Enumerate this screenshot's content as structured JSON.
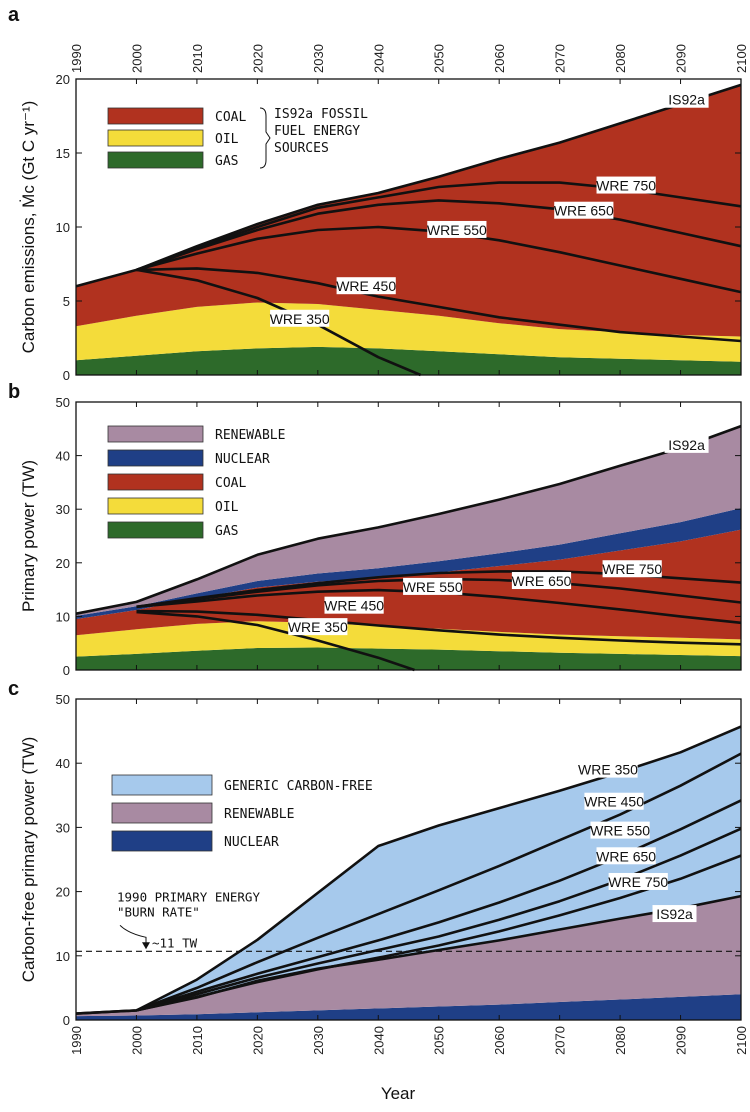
{
  "figure": {
    "xlabel": "Year"
  },
  "colors": {
    "coal": "#b1321f",
    "oil": "#f4dc3a",
    "gas": "#2d6a2a",
    "renewable": "#a88aa2",
    "nuclear": "#1f3f86",
    "carbon_free": "#a6c9ec",
    "axis": "#111111"
  },
  "chart_data": [
    {
      "id": "a",
      "type": "area",
      "panel_label": "a",
      "ylabel": "Carbon emissions, Ṁc (Gt C yr⁻¹)",
      "xlim": [
        1990,
        2100
      ],
      "ylim": [
        0,
        20
      ],
      "x_ticks": [
        1990,
        2000,
        2010,
        2020,
        2030,
        2040,
        2050,
        2060,
        2070,
        2080,
        2090,
        2100
      ],
      "y_ticks": [
        0,
        5,
        10,
        15,
        20
      ],
      "x_tick_position": "top",
      "x": [
        1990,
        2000,
        2010,
        2020,
        2030,
        2040,
        2050,
        2060,
        2070,
        2080,
        2090,
        2100
      ],
      "series": [
        {
          "name": "GAS",
          "color_key": "gas",
          "values": [
            1.0,
            1.3,
            1.6,
            1.8,
            1.9,
            1.8,
            1.6,
            1.4,
            1.2,
            1.1,
            1.0,
            0.9
          ]
        },
        {
          "name": "OIL",
          "color_key": "oil",
          "values": [
            2.3,
            2.7,
            3.0,
            3.1,
            2.9,
            2.6,
            2.4,
            2.1,
            1.9,
            1.8,
            1.7,
            1.7
          ]
        },
        {
          "name": "COAL",
          "color_key": "coal",
          "values": [
            2.7,
            3.1,
            4.1,
            5.3,
            6.7,
            7.9,
            9.4,
            11.1,
            12.6,
            14.1,
            15.6,
            17.0
          ]
        }
      ],
      "legend": {
        "items": [
          "COAL",
          "OIL",
          "GAS"
        ],
        "bracket_label": "IS92a FOSSIL FUEL ENERGY SOURCES",
        "bracket_lines": [
          "IS92a FOSSIL",
          "FUEL ENERGY",
          "SOURCES"
        ]
      },
      "curves": [
        {
          "name": "IS92a",
          "x": [
            1990,
            2000,
            2010,
            2020,
            2030,
            2040,
            2050,
            2060,
            2070,
            2080,
            2090,
            2100
          ],
          "y": [
            6.0,
            7.1,
            8.7,
            10.2,
            11.5,
            12.3,
            13.4,
            14.6,
            15.7,
            17.0,
            18.3,
            19.6
          ]
        },
        {
          "name": "WRE 750",
          "x": [
            2000,
            2010,
            2020,
            2030,
            2040,
            2050,
            2060,
            2070,
            2080,
            2090,
            2100
          ],
          "y": [
            7.1,
            8.6,
            10.0,
            11.3,
            12.0,
            12.7,
            13.0,
            13.0,
            12.6,
            12.0,
            11.4
          ]
        },
        {
          "name": "WRE 650",
          "x": [
            2000,
            2010,
            2020,
            2030,
            2040,
            2050,
            2060,
            2070,
            2080,
            2090,
            2100
          ],
          "y": [
            7.1,
            8.5,
            9.8,
            10.9,
            11.5,
            11.8,
            11.6,
            11.2,
            10.5,
            9.6,
            8.7
          ]
        },
        {
          "name": "WRE 550",
          "x": [
            2000,
            2010,
            2020,
            2030,
            2040,
            2050,
            2060,
            2070,
            2080,
            2090,
            2100
          ],
          "y": [
            7.1,
            8.2,
            9.2,
            9.8,
            10.0,
            9.7,
            9.1,
            8.3,
            7.4,
            6.5,
            5.6
          ]
        },
        {
          "name": "WRE 450",
          "x": [
            2000,
            2010,
            2020,
            2030,
            2040,
            2050,
            2060,
            2070,
            2080,
            2090,
            2100
          ],
          "y": [
            7.1,
            7.2,
            6.9,
            6.2,
            5.3,
            4.6,
            3.9,
            3.4,
            2.9,
            2.6,
            2.3
          ]
        },
        {
          "name": "WRE 350",
          "x": [
            2000,
            2010,
            2020,
            2030,
            2040,
            2047
          ],
          "y": [
            7.1,
            6.4,
            5.2,
            3.4,
            1.2,
            0.0
          ]
        }
      ],
      "curve_labels": [
        {
          "name": "IS92a",
          "x": 2091,
          "y": 18.6
        },
        {
          "name": "WRE 750",
          "x": 2081,
          "y": 12.8
        },
        {
          "name": "WRE 650",
          "x": 2074,
          "y": 11.1
        },
        {
          "name": "WRE 550",
          "x": 2053,
          "y": 9.8
        },
        {
          "name": "WRE 450",
          "x": 2038,
          "y": 6.0
        },
        {
          "name": "WRE 350",
          "x": 2027,
          "y": 3.8
        }
      ]
    },
    {
      "id": "b",
      "type": "area",
      "panel_label": "b",
      "ylabel": "Primary power (TW)",
      "xlim": [
        1990,
        2100
      ],
      "ylim": [
        0,
        50
      ],
      "x_ticks": [
        1990,
        2000,
        2010,
        2020,
        2030,
        2040,
        2050,
        2060,
        2070,
        2080,
        2090,
        2100
      ],
      "y_ticks": [
        0,
        10,
        20,
        30,
        40,
        50
      ],
      "x": [
        1990,
        2000,
        2010,
        2020,
        2030,
        2040,
        2050,
        2060,
        2070,
        2080,
        2090,
        2100
      ],
      "series": [
        {
          "name": "GAS",
          "color_key": "gas",
          "values": [
            2.5,
            3.0,
            3.6,
            4.1,
            4.2,
            4.0,
            3.8,
            3.5,
            3.2,
            3.0,
            2.8,
            2.6
          ]
        },
        {
          "name": "OIL",
          "color_key": "oil",
          "values": [
            4.0,
            4.6,
            5.0,
            5.0,
            4.6,
            4.2,
            3.9,
            3.6,
            3.4,
            3.3,
            3.2,
            3.1
          ]
        },
        {
          "name": "COAL",
          "color_key": "coal",
          "values": [
            3.0,
            3.6,
            4.8,
            6.3,
            7.7,
            9.0,
            10.5,
            12.3,
            14.0,
            16.0,
            18.0,
            20.5
          ]
        },
        {
          "name": "NUCLEAR",
          "color_key": "nuclear",
          "values": [
            0.6,
            0.7,
            0.9,
            1.2,
            1.5,
            1.8,
            2.1,
            2.4,
            2.8,
            3.2,
            3.6,
            4.0
          ]
        },
        {
          "name": "RENEWABLE",
          "color_key": "renewable",
          "values": [
            0.4,
            0.8,
            2.6,
            4.9,
            6.5,
            7.6,
            8.8,
            10.0,
            11.3,
            12.6,
            13.8,
            15.3
          ]
        }
      ],
      "legend": {
        "items": [
          "RENEWABLE",
          "NUCLEAR",
          "COAL",
          "OIL",
          "GAS"
        ]
      },
      "curves": [
        {
          "name": "IS92a",
          "x": [
            1990,
            2000,
            2010,
            2020,
            2030,
            2040,
            2050,
            2060,
            2070,
            2080,
            2090,
            2100
          ],
          "y": [
            10.5,
            12.7,
            16.9,
            21.5,
            24.5,
            26.6,
            29.1,
            31.8,
            34.7,
            38.1,
            41.4,
            45.5
          ]
        },
        {
          "name": "WRE 750",
          "x": [
            2000,
            2010,
            2020,
            2030,
            2040,
            2050,
            2060,
            2070,
            2080,
            2090,
            2100
          ],
          "y": [
            11.8,
            13.4,
            14.9,
            16.2,
            17.3,
            18.1,
            18.4,
            18.4,
            17.9,
            17.1,
            16.3
          ]
        },
        {
          "name": "WRE 650",
          "x": [
            2000,
            2010,
            2020,
            2030,
            2040,
            2050,
            2060,
            2070,
            2080,
            2090,
            2100
          ],
          "y": [
            11.8,
            13.2,
            14.6,
            15.8,
            16.6,
            17.0,
            16.8,
            16.2,
            15.2,
            13.9,
            12.6
          ]
        },
        {
          "name": "WRE 550",
          "x": [
            2000,
            2010,
            2020,
            2030,
            2040,
            2050,
            2060,
            2070,
            2080,
            2090,
            2100
          ],
          "y": [
            11.8,
            12.8,
            13.9,
            14.6,
            14.9,
            14.5,
            13.6,
            12.5,
            11.3,
            10.0,
            8.8
          ]
        },
        {
          "name": "WRE 450",
          "x": [
            2000,
            2010,
            2020,
            2030,
            2040,
            2050,
            2060,
            2070,
            2080,
            2090,
            2100
          ],
          "y": [
            11.0,
            10.9,
            10.3,
            9.3,
            8.3,
            7.4,
            6.6,
            6.0,
            5.5,
            5.1,
            4.8
          ]
        },
        {
          "name": "WRE 350",
          "x": [
            2000,
            2010,
            2020,
            2030,
            2040,
            2046
          ],
          "y": [
            10.8,
            10.0,
            8.4,
            5.5,
            2.3,
            0.0
          ]
        }
      ],
      "curve_labels": [
        {
          "name": "IS92a",
          "x": 2091,
          "y": 42.0
        },
        {
          "name": "WRE 750",
          "x": 2082,
          "y": 18.8
        },
        {
          "name": "WRE 650",
          "x": 2067,
          "y": 16.6
        },
        {
          "name": "WRE 550",
          "x": 2049,
          "y": 15.5
        },
        {
          "name": "WRE 450",
          "x": 2036,
          "y": 12.0
        },
        {
          "name": "WRE 350",
          "x": 2030,
          "y": 8.0
        }
      ]
    },
    {
      "id": "c",
      "type": "area",
      "panel_label": "c",
      "ylabel": "Carbon-free primary power (TW)",
      "xlim": [
        1990,
        2100
      ],
      "ylim": [
        0,
        50
      ],
      "x_ticks": [
        1990,
        2000,
        2010,
        2020,
        2030,
        2040,
        2050,
        2060,
        2070,
        2080,
        2090,
        2100
      ],
      "y_ticks": [
        0,
        10,
        20,
        30,
        40,
        50
      ],
      "x_tick_position": "bottom",
      "x": [
        1990,
        2000,
        2010,
        2020,
        2030,
        2040,
        2050,
        2060,
        2070,
        2080,
        2090,
        2100
      ],
      "series": [
        {
          "name": "NUCLEAR",
          "color_key": "nuclear",
          "values": [
            0.6,
            0.7,
            0.9,
            1.2,
            1.5,
            1.8,
            2.1,
            2.4,
            2.8,
            3.2,
            3.6,
            4.0
          ]
        },
        {
          "name": "RENEWABLE",
          "color_key": "renewable",
          "values": [
            0.4,
            0.8,
            2.6,
            4.9,
            6.5,
            7.6,
            8.8,
            10.0,
            11.3,
            12.6,
            13.8,
            15.3
          ]
        },
        {
          "name": "GENERIC CARBON-FREE",
          "color_key": "carbon_free",
          "values": [
            0.0,
            0.0,
            2.8,
            6.4,
            11.8,
            17.7,
            19.4,
            20.6,
            21.6,
            22.8,
            24.3,
            26.4
          ]
        }
      ],
      "legend": {
        "items": [
          "GENERIC CARBON-FREE",
          "RENEWABLE",
          "NUCLEAR"
        ]
      },
      "curves": [
        {
          "name": "WRE 350",
          "x": [
            1990,
            2000,
            2010,
            2020,
            2030,
            2040,
            2050,
            2060,
            2070,
            2080,
            2090,
            2100
          ],
          "y": [
            1.0,
            1.5,
            6.3,
            12.5,
            19.8,
            27.1,
            30.3,
            33.0,
            35.7,
            38.6,
            41.7,
            45.7
          ]
        },
        {
          "name": "WRE 450",
          "x": [
            2000,
            2010,
            2020,
            2030,
            2040,
            2050,
            2060,
            2070,
            2080,
            2090,
            2100
          ],
          "y": [
            1.5,
            5.0,
            9.0,
            12.8,
            16.5,
            20.2,
            24.0,
            28.0,
            32.0,
            36.5,
            41.5
          ]
        },
        {
          "name": "WRE 550",
          "x": [
            2000,
            2010,
            2020,
            2030,
            2040,
            2050,
            2060,
            2070,
            2080,
            2090,
            2100
          ],
          "y": [
            1.5,
            4.4,
            7.2,
            9.8,
            12.4,
            15.2,
            18.3,
            21.7,
            25.5,
            29.7,
            34.2
          ]
        },
        {
          "name": "WRE 650",
          "x": [
            2000,
            2010,
            2020,
            2030,
            2040,
            2050,
            2060,
            2070,
            2080,
            2090,
            2100
          ],
          "y": [
            1.5,
            4.0,
            6.6,
            8.8,
            10.9,
            13.0,
            15.6,
            18.5,
            21.8,
            25.6,
            29.8
          ]
        },
        {
          "name": "WRE 750",
          "x": [
            2000,
            2010,
            2020,
            2030,
            2040,
            2050,
            2060,
            2070,
            2080,
            2090,
            2100
          ],
          "y": [
            1.5,
            3.6,
            5.9,
            7.9,
            9.7,
            11.6,
            13.8,
            16.3,
            19.0,
            22.0,
            25.6
          ]
        },
        {
          "name": "IS92a",
          "x": [
            1990,
            2000,
            2010,
            2020,
            2030,
            2040,
            2050,
            2060,
            2070,
            2080,
            2090,
            2100
          ],
          "y": [
            1.0,
            1.5,
            3.5,
            6.1,
            8.0,
            9.4,
            10.9,
            12.4,
            14.1,
            15.8,
            17.4,
            19.3
          ]
        }
      ],
      "curve_labels": [
        {
          "name": "WRE 350",
          "x": 2078,
          "y": 39.0
        },
        {
          "name": "WRE 450",
          "x": 2079,
          "y": 34.0
        },
        {
          "name": "WRE 550",
          "x": 2080,
          "y": 29.5
        },
        {
          "name": "WRE 650",
          "x": 2081,
          "y": 25.5
        },
        {
          "name": "WRE 750",
          "x": 2083,
          "y": 21.5
        },
        {
          "name": "IS92a",
          "x": 2089,
          "y": 16.5
        }
      ],
      "reference_line": {
        "value": 10.7,
        "label_lines": [
          "1990 PRIMARY ENERGY",
          "\"BURN RATE\""
        ],
        "value_label": "~11 TW"
      }
    }
  ]
}
